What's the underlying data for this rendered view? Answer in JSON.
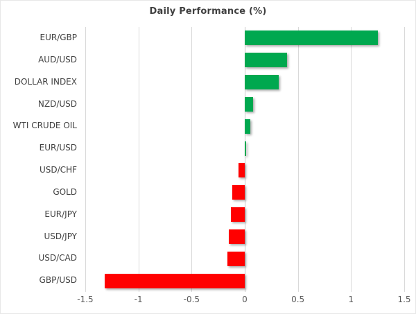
{
  "chart_data": {
    "type": "bar",
    "orientation": "horizontal",
    "title": "Daily Performance (%)",
    "categories": [
      "EUR/GBP",
      "AUD/USD",
      "DOLLAR INDEX",
      "NZD/USD",
      "WTI CRUDE OIL",
      "EUR/USD",
      "USD/CHF",
      "GOLD",
      "EUR/JPY",
      "USD/JPY",
      "USD/CAD",
      "GBP/USD"
    ],
    "values": [
      1.25,
      0.4,
      0.32,
      0.08,
      0.05,
      0.01,
      -0.06,
      -0.12,
      -0.13,
      -0.15,
      -0.16,
      -1.32
    ],
    "xlim": [
      -1.5,
      1.5
    ],
    "x_tick_values": [
      -1.5,
      -1,
      -0.5,
      0,
      0.5,
      1,
      1.5
    ],
    "x_tick_labels": [
      "-1.5",
      "-1",
      "-0.5",
      "0",
      "0.5",
      "1",
      "1.5"
    ],
    "grid": true,
    "legend": false,
    "colors": {
      "positive": "#00A84F",
      "negative": "#FF0000",
      "gridline": "#D9D9D9",
      "zero_line": "#C9C9C9",
      "title": "#404040",
      "category_label": "#404040",
      "tick_label": "#595959",
      "background": "#FFFFFF"
    }
  }
}
